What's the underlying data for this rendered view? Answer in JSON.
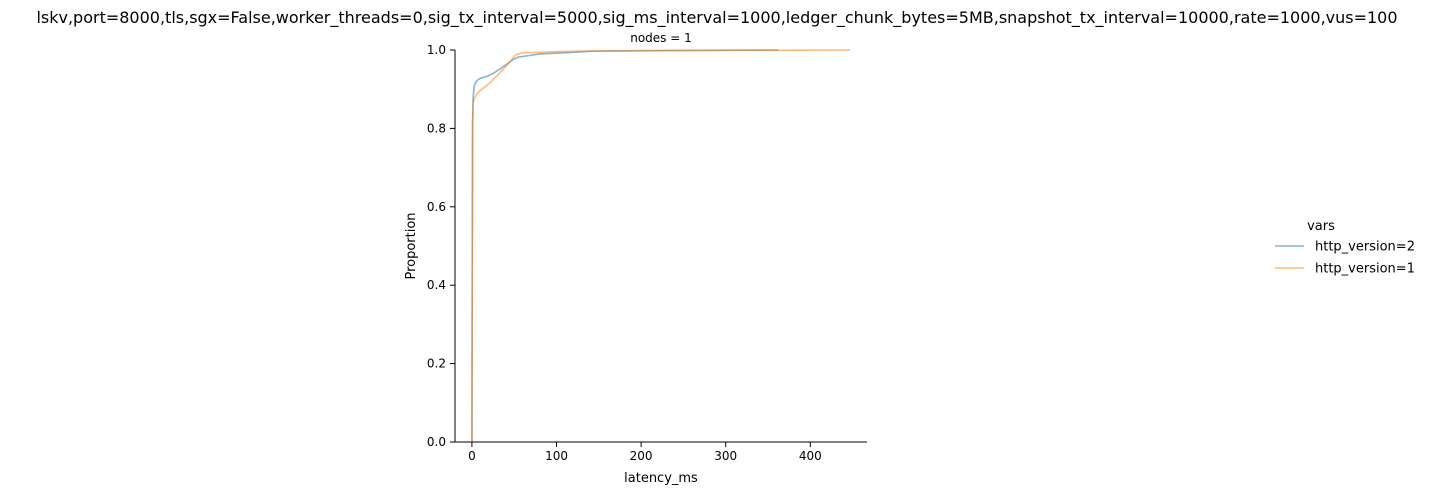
{
  "figure": {
    "suptitle": "lskv,port=8000,tls,sgx=False,worker_threads=0,sig_tx_interval=5000,sig_ms_interval=1000,ledger_chunk_bytes=5MB,snapshot_tx_interval=10000,rate=1000,vus=100"
  },
  "chart_data": {
    "type": "line",
    "title": "nodes = 1",
    "xlabel": "latency_ms",
    "ylabel": "Proportion",
    "xlim": [
      -20,
      467
    ],
    "ylim": [
      0,
      1
    ],
    "xticks": [
      0,
      100,
      200,
      300,
      400
    ],
    "yticks": [
      0.0,
      0.2,
      0.4,
      0.6,
      0.8,
      1.0
    ],
    "xtick_labels": [
      "0",
      "100",
      "200",
      "300",
      "400"
    ],
    "ytick_labels": [
      "0.0",
      "0.2",
      "0.4",
      "0.6",
      "0.8",
      "1.0"
    ],
    "grid": false,
    "legend": {
      "title": "vars",
      "placement": "right"
    },
    "series": [
      {
        "name": "http_version=2",
        "color": "#1f77b4",
        "x": [
          0,
          0.3,
          0.8,
          1.5,
          2.5,
          4,
          6,
          9,
          13,
          18,
          25,
          32,
          40,
          48,
          55,
          65,
          80,
          100,
          120,
          140,
          180,
          250,
          362
        ],
        "y": [
          0,
          0.3,
          0.82,
          0.88,
          0.905,
          0.915,
          0.922,
          0.927,
          0.93,
          0.933,
          0.94,
          0.95,
          0.962,
          0.975,
          0.982,
          0.985,
          0.99,
          0.992,
          0.994,
          0.997,
          0.998,
          0.999,
          1.0
        ]
      },
      {
        "name": "http_version=1",
        "color": "#ff7f0e",
        "x": [
          0,
          0.3,
          0.8,
          1.5,
          2.5,
          4,
          6,
          10,
          15,
          22,
          30,
          40,
          48,
          52,
          60,
          80,
          100,
          130,
          200,
          300,
          447
        ],
        "y": [
          0,
          0.3,
          0.8,
          0.865,
          0.875,
          0.88,
          0.888,
          0.897,
          0.905,
          0.918,
          0.935,
          0.958,
          0.978,
          0.988,
          0.993,
          0.994,
          0.996,
          0.997,
          0.998,
          0.999,
          1.0
        ]
      }
    ]
  }
}
